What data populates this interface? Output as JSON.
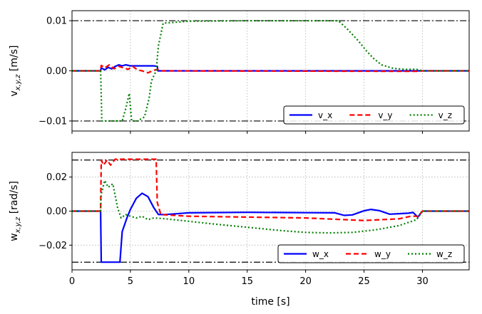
{
  "chart_data": [
    {
      "type": "line",
      "ylabel_main": "v",
      "ylabel_sub": "x,y,z",
      "ylabel_unit": " [m/s]",
      "xlim": [
        0,
        34
      ],
      "ylim": [
        -0.012,
        0.012
      ],
      "yticks": [
        -0.01,
        0.0,
        0.01
      ],
      "ytick_labels": [
        "−0.01",
        "0.00",
        "0.01"
      ],
      "xticks": [
        0,
        5,
        10,
        15,
        20,
        25,
        30
      ],
      "hlines": [
        0.01,
        -0.01
      ],
      "grid": true,
      "legend_position": "bottom-right",
      "series": [
        {
          "name": "v_x",
          "color": "#0000ff",
          "style": "solid",
          "x": [
            0,
            2.45,
            2.5,
            2.8,
            3.1,
            3.4,
            3.7,
            4.0,
            4.3,
            4.6,
            5.0,
            5.5,
            6.0,
            6.5,
            7.0,
            7.3,
            7.35,
            30,
            34
          ],
          "y": [
            0,
            0,
            0.0006,
            0.0002,
            0.0007,
            0.0004,
            0.0009,
            0.0012,
            0.001,
            0.0012,
            0.001,
            0.001,
            0.001,
            0.001,
            0.001,
            0.0009,
            0,
            0,
            0
          ]
        },
        {
          "name": "v_y",
          "color": "#ff0000",
          "style": "dashed",
          "x": [
            0,
            2.45,
            2.5,
            2.8,
            3.2,
            3.6,
            4.0,
            4.4,
            4.8,
            5.2,
            5.6,
            6.0,
            6.5,
            7.0,
            7.3,
            7.5,
            29.5,
            30,
            34
          ],
          "y": [
            0,
            0,
            0.0011,
            0.0006,
            0.0012,
            0.0004,
            0.0009,
            0.0006,
            0.0003,
            0.0009,
            0.0002,
            0.0,
            -0.0004,
            0.0001,
            0.0003,
            0,
            -0.0001,
            0,
            0
          ]
        },
        {
          "name": "v_z",
          "color": "#008000",
          "style": "dotted",
          "x": [
            0,
            2.45,
            2.5,
            2.55,
            3.5,
            4.3,
            4.6,
            4.9,
            5.1,
            5.3,
            5.6,
            6.2,
            6.6,
            6.8,
            7.2,
            7.4,
            7.8,
            10,
            15,
            20,
            22.8,
            23.5,
            24.5,
            25.2,
            25.8,
            26.5,
            27.5,
            28.5,
            29.5,
            30,
            34
          ],
          "y": [
            0,
            0,
            -0.005,
            -0.01,
            -0.01,
            -0.01,
            -0.0075,
            -0.0045,
            -0.01,
            -0.01,
            -0.01,
            -0.0092,
            -0.0055,
            -0.002,
            0.0,
            0.005,
            0.0095,
            0.0099,
            0.01,
            0.01,
            0.01,
            0.0085,
            0.006,
            0.004,
            0.0025,
            0.0012,
            0.0005,
            0.0003,
            0.0003,
            0,
            0
          ]
        }
      ]
    },
    {
      "type": "line",
      "ylabel_main": "w",
      "ylabel_sub": "x,y,z",
      "ylabel_unit": " [rad/s]",
      "xlabel": "time [s]",
      "xlim": [
        0,
        34
      ],
      "ylim": [
        -0.0345,
        0.0345
      ],
      "yticks": [
        -0.02,
        0.0,
        0.02
      ],
      "ytick_labels": [
        "−0.02",
        "0.00",
        "0.02"
      ],
      "xticks": [
        0,
        5,
        10,
        15,
        20,
        25,
        30
      ],
      "xtick_labels": [
        "0",
        "5",
        "10",
        "15",
        "20",
        "25",
        "30"
      ],
      "hlines": [
        0.03,
        -0.03
      ],
      "grid": true,
      "legend_position": "bottom-right",
      "series": [
        {
          "name": "w_x",
          "color": "#0000ff",
          "style": "solid",
          "x": [
            0,
            2.45,
            2.5,
            4.1,
            4.3,
            4.7,
            5.0,
            5.5,
            6.0,
            6.5,
            7.0,
            7.4,
            8,
            10,
            15,
            20,
            22.5,
            23.3,
            24,
            25,
            25.6,
            26.3,
            27.2,
            28,
            28.8,
            29.2,
            29.6,
            30,
            34
          ],
          "y": [
            0,
            0,
            -0.03,
            -0.03,
            -0.012,
            -0.004,
            0.001,
            0.0075,
            0.0105,
            0.0085,
            0.002,
            -0.002,
            -0.002,
            -0.001,
            -0.0007,
            -0.0009,
            -0.001,
            -0.0025,
            -0.0022,
            0.0002,
            0.001,
            0.0003,
            -0.0018,
            -0.0015,
            -0.0012,
            -0.0008,
            -0.0035,
            0,
            0
          ]
        },
        {
          "name": "w_y",
          "color": "#ff0000",
          "style": "dashed",
          "x": [
            0,
            2.45,
            2.5,
            2.7,
            3.0,
            3.3,
            3.7,
            7.2,
            7.3,
            7.6,
            10,
            15,
            20,
            25,
            28,
            29,
            29.6,
            30,
            34
          ],
          "y": [
            0,
            0,
            0.03,
            0.027,
            0.03,
            0.027,
            0.0305,
            0.0305,
            0.005,
            -0.002,
            -0.003,
            -0.0035,
            -0.004,
            -0.0055,
            -0.0045,
            -0.003,
            -0.003,
            0,
            0
          ]
        },
        {
          "name": "w_z",
          "color": "#008000",
          "style": "dotted",
          "x": [
            0,
            2.45,
            2.5,
            2.8,
            3.1,
            3.5,
            3.9,
            4.2,
            4.6,
            5.0,
            5.5,
            6.0,
            6.5,
            7.0,
            8,
            10,
            12,
            15,
            18,
            20,
            22,
            24,
            26,
            28,
            29.5,
            30,
            34
          ],
          "y": [
            0,
            0,
            0.01,
            0.018,
            0.014,
            0.016,
            0.002,
            -0.004,
            -0.002,
            -0.003,
            -0.004,
            -0.003,
            -0.005,
            -0.004,
            -0.0045,
            -0.006,
            -0.0075,
            -0.0095,
            -0.0115,
            -0.0125,
            -0.0128,
            -0.0125,
            -0.011,
            -0.0085,
            -0.005,
            0,
            0
          ]
        }
      ]
    }
  ]
}
